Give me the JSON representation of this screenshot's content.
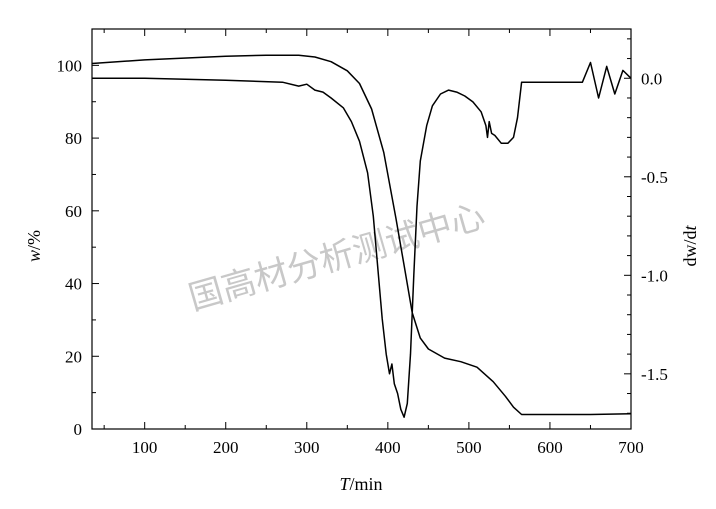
{
  "chart_data": {
    "type": "line",
    "watermark": "国高材分析测试中心",
    "x_axis": {
      "label_italic": "T",
      "label_rest": "/min",
      "range": [
        35,
        700
      ],
      "ticks": [
        100,
        200,
        300,
        400,
        500,
        600,
        700
      ],
      "tick_labels": [
        "100",
        "200",
        "300",
        "400",
        "500",
        "600",
        "700"
      ]
    },
    "y_left": {
      "label_italic": "w",
      "label_rest": "/%",
      "range": [
        0,
        110
      ],
      "ticks": [
        0,
        20,
        40,
        60,
        80,
        100
      ],
      "tick_labels": [
        "0",
        "20",
        "40",
        "60",
        "80",
        "100"
      ]
    },
    "y_right": {
      "label_pre": "dw/d",
      "label_italic": "t",
      "range": [
        -1.78,
        0.25
      ],
      "ticks": [
        0.0,
        -0.5,
        -1.0,
        -1.5
      ],
      "tick_labels": [
        "0.0",
        "-0.5",
        "-1.0",
        "-1.5"
      ]
    },
    "series": [
      {
        "axis": "left",
        "color": "#000000",
        "x": [
          35,
          100,
          200,
          250,
          290,
          310,
          330,
          350,
          365,
          380,
          395,
          410,
          420,
          430,
          440,
          450,
          470,
          490,
          510,
          530,
          545,
          555,
          565,
          600,
          650,
          700
        ],
        "y": [
          100.5,
          101.5,
          102.5,
          102.8,
          102.8,
          102.3,
          101.0,
          98.5,
          95.0,
          88.0,
          76.0,
          58.0,
          45.0,
          32.0,
          25.0,
          22.0,
          19.5,
          18.5,
          17.0,
          13.0,
          9.0,
          6.0,
          4.0,
          4.0,
          4.0,
          4.2
        ]
      },
      {
        "axis": "right",
        "color": "#000000",
        "x": [
          35,
          100,
          200,
          270,
          290,
          300,
          310,
          320,
          330,
          345,
          355,
          365,
          375,
          382,
          388,
          393,
          398,
          402,
          405,
          408,
          412,
          416,
          420,
          424,
          428,
          432,
          436,
          440,
          448,
          455,
          465,
          475,
          485,
          495,
          505,
          515,
          521,
          523,
          525,
          528,
          532,
          540,
          548,
          555,
          560,
          565,
          600,
          640,
          650,
          660,
          670,
          680,
          690,
          700
        ],
        "y": [
          0.0,
          0.0,
          -0.01,
          -0.02,
          -0.04,
          -0.03,
          -0.06,
          -0.07,
          -0.1,
          -0.15,
          -0.22,
          -0.32,
          -0.48,
          -0.7,
          -0.98,
          -1.22,
          -1.4,
          -1.5,
          -1.45,
          -1.55,
          -1.6,
          -1.68,
          -1.72,
          -1.65,
          -1.4,
          -1.0,
          -0.65,
          -0.42,
          -0.24,
          -0.14,
          -0.08,
          -0.06,
          -0.07,
          -0.09,
          -0.12,
          -0.17,
          -0.24,
          -0.3,
          -0.22,
          -0.28,
          -0.29,
          -0.33,
          -0.33,
          -0.3,
          -0.2,
          -0.02,
          -0.02,
          -0.02,
          0.08,
          -0.1,
          0.06,
          -0.08,
          0.04,
          0.0
        ]
      }
    ]
  }
}
